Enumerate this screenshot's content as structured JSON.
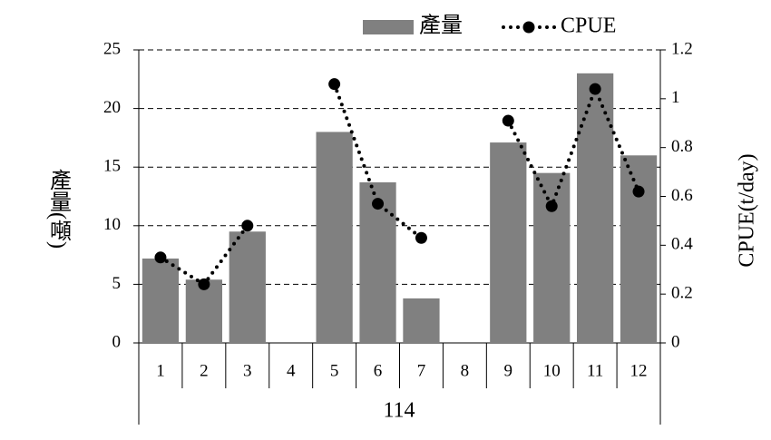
{
  "chart_data": {
    "type": "bar",
    "categories": [
      "1",
      "2",
      "3",
      "4",
      "5",
      "6",
      "7",
      "8",
      "9",
      "10",
      "11",
      "12"
    ],
    "group_label": "114",
    "y_label": "產量(噸)",
    "y2_label": "CPUE(t/day)",
    "series": [
      {
        "name": "產量",
        "type": "bar",
        "color": "#808080",
        "values": [
          7.2,
          5.4,
          9.5,
          null,
          18,
          13.7,
          3.8,
          null,
          17.1,
          14.5,
          23,
          16
        ]
      },
      {
        "name": "CPUE",
        "type": "line",
        "axis": "y2",
        "color": "#000000",
        "values": [
          0.35,
          0.24,
          0.48,
          null,
          1.06,
          0.57,
          0.43,
          null,
          0.91,
          0.56,
          1.04,
          0.62
        ]
      }
    ],
    "ylim": [
      0,
      25
    ],
    "yticks": [
      0,
      5,
      10,
      15,
      20,
      25
    ],
    "y2lim": [
      0,
      1.2
    ],
    "y2ticks": [
      0,
      0.2,
      0.4,
      0.6,
      0.8,
      1,
      1.2
    ],
    "grid": true,
    "legend": "top"
  }
}
